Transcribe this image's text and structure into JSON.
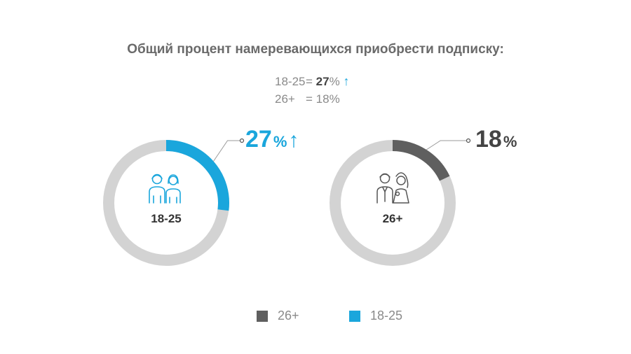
{
  "chart_data": {
    "type": "donut",
    "title": "Общий процент намеревающихся приобрести подписку:",
    "summary": [
      {
        "label": "18-25",
        "eq": "=",
        "value": "27",
        "unit": "%",
        "arrow": "↑"
      },
      {
        "label": "26+",
        "eq": "=",
        "value": "18",
        "unit": "%"
      }
    ],
    "charts": [
      {
        "group": "18-25",
        "value": 27,
        "value_label": "27",
        "unit": "%",
        "arrow": "↑",
        "color": "#1aa6dc",
        "track_color": "#d3d3d3",
        "icon": "young-couple-icon"
      },
      {
        "group": "26+",
        "value": 18,
        "value_label": "18",
        "unit": "%",
        "color": "#5f5f5f",
        "track_color": "#d3d3d3",
        "icon": "bride-groom-icon"
      }
    ],
    "legend": [
      {
        "label": "26+",
        "color": "#5f5f5f"
      },
      {
        "label": "18-25",
        "color": "#1aa6dc"
      }
    ]
  }
}
